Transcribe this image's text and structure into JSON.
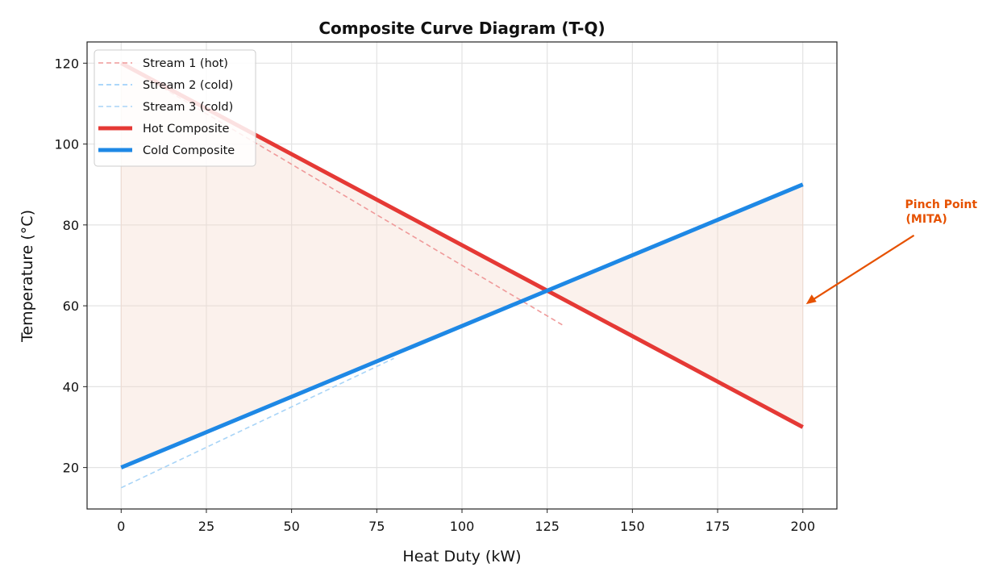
{
  "chart_data": {
    "type": "line",
    "title": "Composite Curve Diagram (T-Q)",
    "xlabel": "Heat Duty (kW)",
    "ylabel": "Temperature (°C)",
    "xlim": [
      -10,
      210
    ],
    "ylim": [
      9.75,
      125.25
    ],
    "xticks": [
      0,
      25,
      50,
      75,
      100,
      125,
      150,
      175,
      200
    ],
    "yticks": [
      20,
      40,
      60,
      80,
      100,
      120
    ],
    "grid": true,
    "legend_position": "top-left",
    "series": [
      {
        "name": "Stream 1 (hot)",
        "style": "dashed",
        "color": "#ef9a9a",
        "x": [
          0,
          130
        ],
        "y": [
          120,
          55
        ]
      },
      {
        "name": "Stream 2 (cold)",
        "style": "dashed",
        "color": "#90caf9",
        "x": [
          80,
          200
        ],
        "y": [
          48,
          90
        ]
      },
      {
        "name": "Stream 3 (cold)",
        "style": "dashed",
        "color": "#a8d4f7",
        "x": [
          0,
          80
        ],
        "y": [
          15,
          47
        ]
      },
      {
        "name": "Hot Composite",
        "style": "solid",
        "color": "#e53935",
        "x": [
          0,
          200
        ],
        "y": [
          120,
          30
        ]
      },
      {
        "name": "Cold Composite",
        "style": "solid",
        "color": "#1e88e5",
        "x": [
          0,
          200
        ],
        "y": [
          20,
          90
        ]
      }
    ],
    "fill_between": {
      "between": [
        "Hot Composite",
        "Cold Composite"
      ],
      "x": [
        0,
        200
      ],
      "color": "#f4d6c8"
    },
    "annotation": {
      "text_line1": "Pinch Point",
      "text_line2": "(MITA)",
      "color": "#e65100",
      "point": [
        200,
        60
      ],
      "text_at": [
        230,
        83
      ]
    }
  }
}
